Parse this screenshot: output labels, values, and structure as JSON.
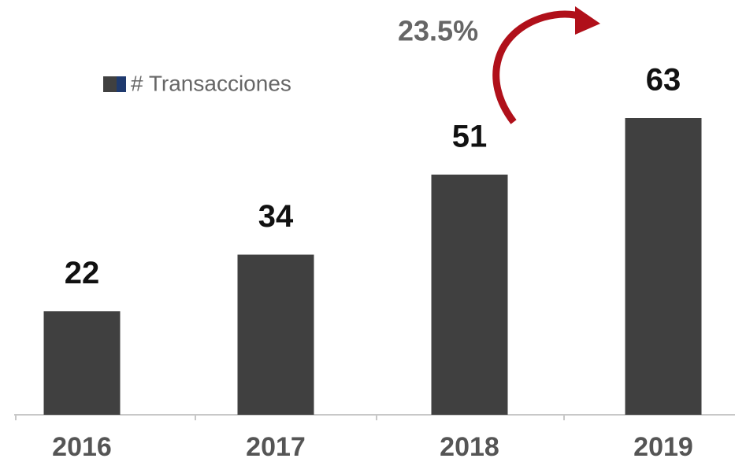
{
  "chart_data": {
    "type": "bar",
    "categories": [
      "2016",
      "2017",
      "2018",
      "2019"
    ],
    "series": [
      {
        "name": "# Transacciones",
        "color": "#404040",
        "values": [
          22,
          34,
          51,
          63
        ]
      }
    ],
    "annotation": "23.5%",
    "legend": "top-left"
  }
}
